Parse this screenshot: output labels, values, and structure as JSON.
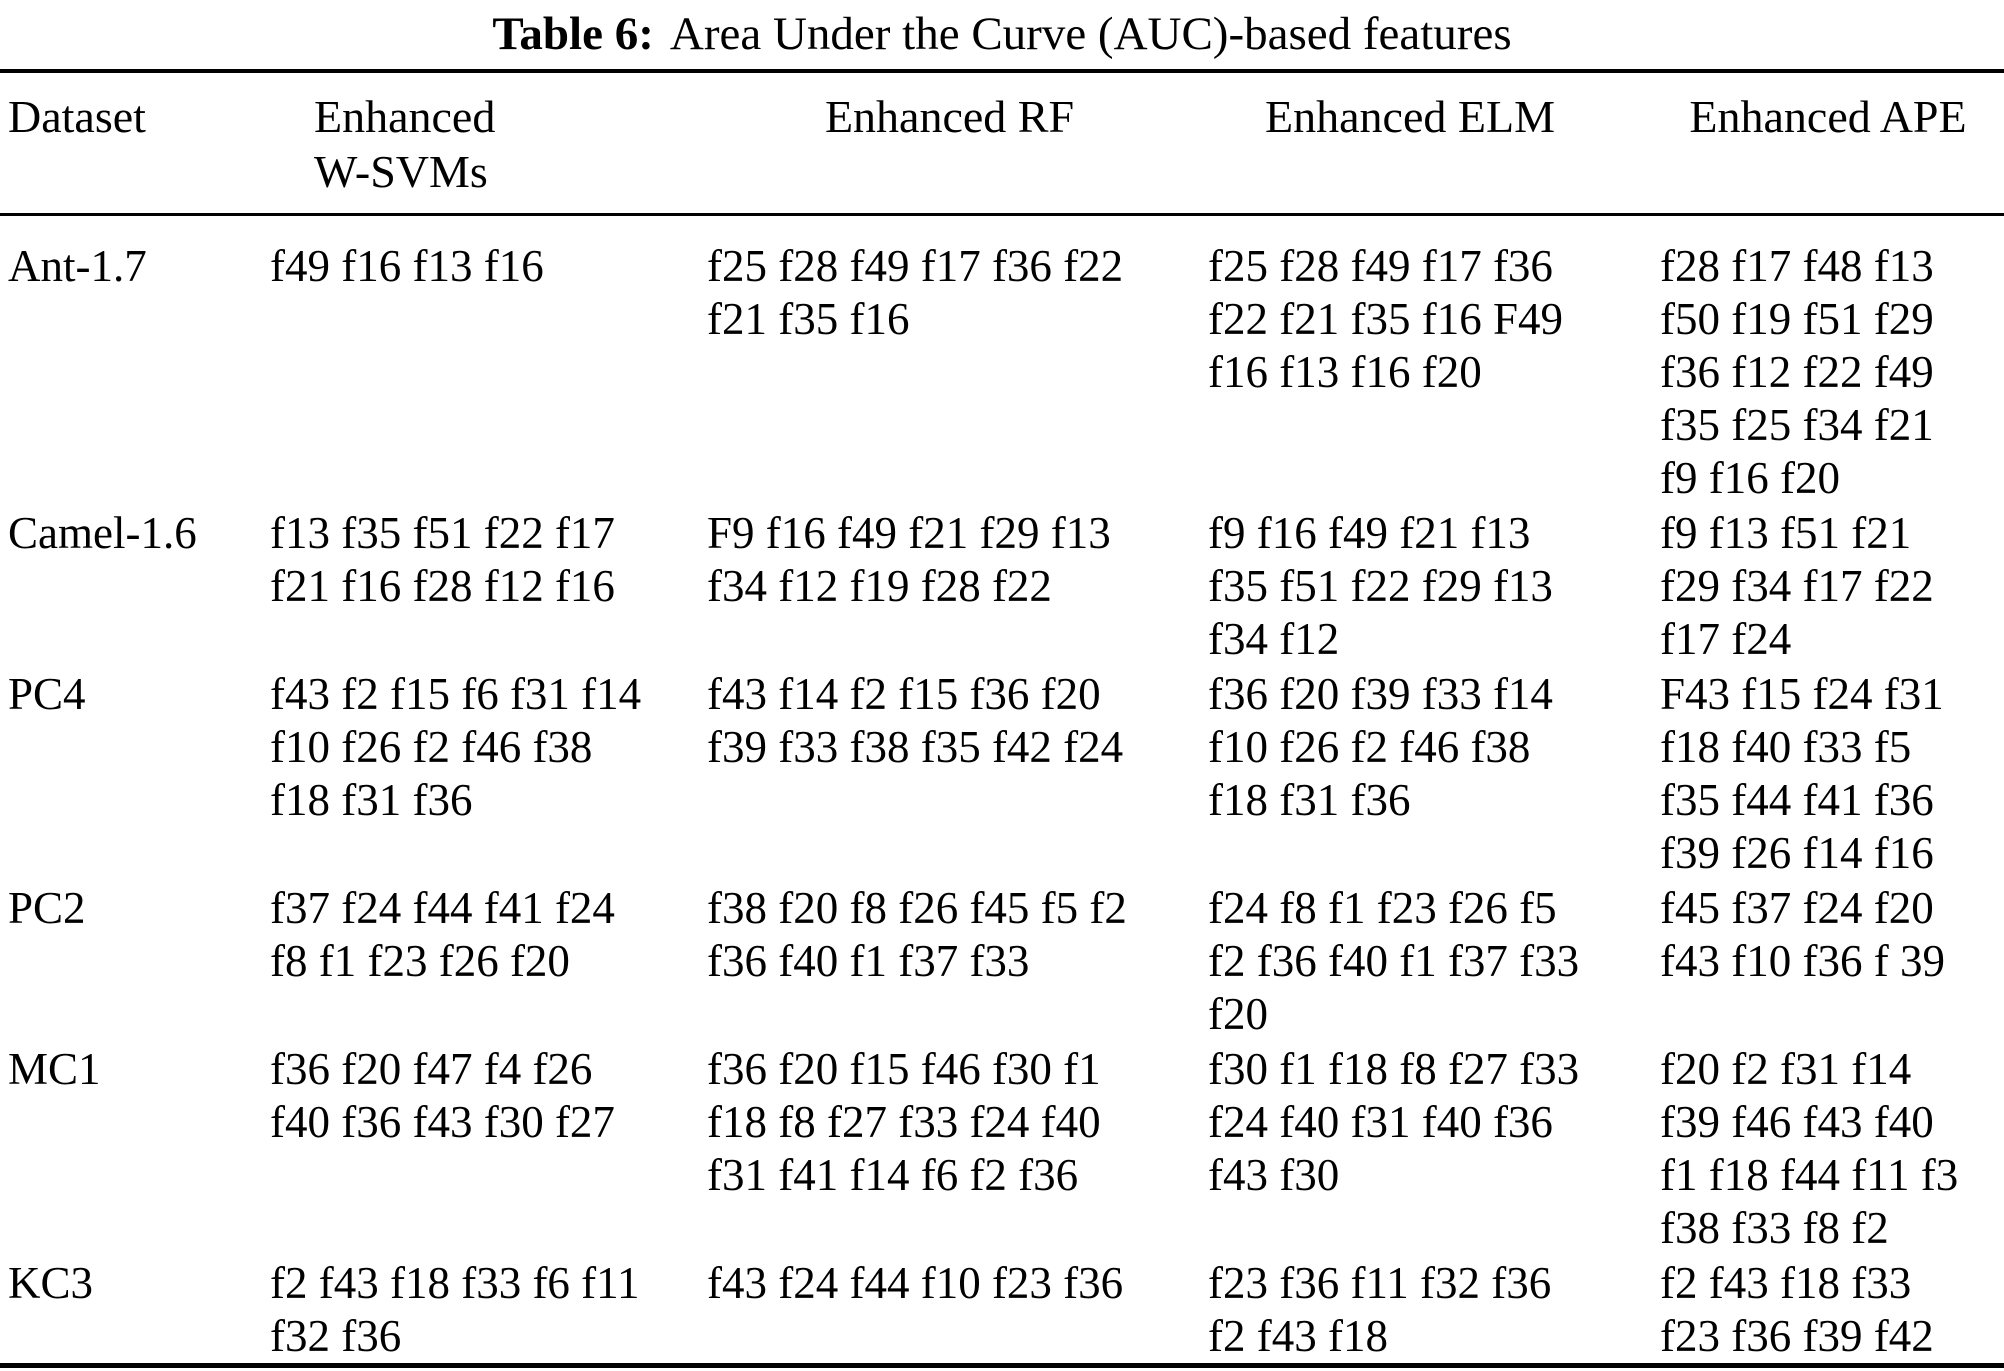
{
  "colors": {
    "text": "#000000",
    "background": "#ffffff"
  },
  "caption": {
    "label": "Table 6:",
    "text": "Area Under the Curve (AUC)-based features"
  },
  "table": {
    "columns": [
      "Dataset",
      "Enhanced W-SVMs",
      "Enhanced RF",
      "Enhanced ELM",
      "Enhanced APE"
    ],
    "rows": [
      {
        "dataset": "Ant-1.7",
        "wsvm": "f49 f16 f13 f16",
        "rf": "f25 f28 f49 f17 f36 f22 f21 f35 f16",
        "elm": "f25 f28 f49 f17 f36 f22 f21 f35 f16 F49 f16 f13 f16 f20",
        "ape": "f28 f17 f48 f13 f50 f19 f51 f29 f36 f12 f22 f49 f35 f25 f34 f21 f9 f16 f20"
      },
      {
        "dataset": "Camel-1.6",
        "wsvm": "f13 f35 f51 f22 f17 f21 f16 f28 f12 f16",
        "rf": "F9 f16 f49 f21 f29 f13 f34 f12 f19 f28 f22",
        "elm": "f9 f16 f49 f21 f13 f35 f51 f22 f29 f13 f34 f12",
        "ape": "f9 f13 f51 f21 f29 f34 f17 f22 f17 f24"
      },
      {
        "dataset": "PC4",
        "wsvm": "f43 f2 f15 f6 f31 f14 f10 f26 f2 f46 f38 f18 f31 f36",
        "rf": "f43 f14 f2 f15 f36 f20 f39 f33 f38 f35 f42 f24",
        "elm": "f36 f20 f39 f33 f14 f10 f26 f2 f46 f38 f18 f31 f36",
        "ape": "F43 f15 f24 f31 f18 f40 f33 f5 f35 f44 f41 f36 f39 f26 f14 f16"
      },
      {
        "dataset": "PC2",
        "wsvm": "f37 f24 f44 f41 f24 f8 f1 f23 f26 f20",
        "rf": "f38 f20 f8 f26 f45 f5 f2 f36 f40 f1 f37 f33",
        "elm": "f24 f8 f1 f23 f26 f5 f2 f36 f40 f1 f37 f33 f20",
        "ape": "f45 f37 f24 f20 f43 f10 f36 f 39"
      },
      {
        "dataset": "MC1",
        "wsvm": "f36 f20 f47 f4 f26 f40 f36 f43 f30 f27",
        "rf": "f36 f20 f15 f46 f30 f1 f18 f8 f27 f33 f24 f40 f31 f41 f14 f6 f2 f36",
        "elm": "f30 f1 f18 f8 f27 f33 f24 f40 f31 f40 f36 f43 f30",
        "ape": "f20 f2 f31 f14 f39 f46 f43 f40 f1 f18 f44 f11 f3 f38 f33 f8 f2"
      },
      {
        "dataset": "KC3",
        "wsvm": "f2 f43 f18 f33 f6 f11 f32 f36",
        "rf": "f43 f24 f44 f10 f23 f36",
        "elm": "f23 f36 f11 f32 f36 f2 f43 f18",
        "ape": "f2 f43 f18 f33 f23 f36 f39 f42"
      }
    ]
  }
}
